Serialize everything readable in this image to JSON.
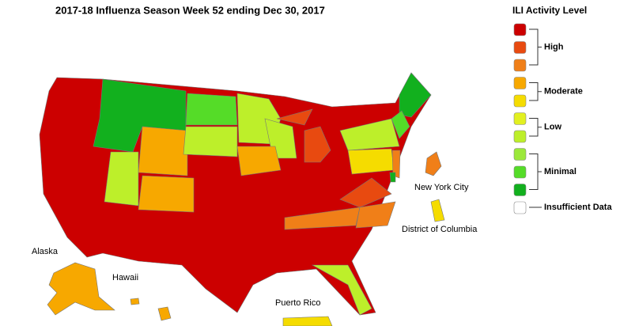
{
  "title": "2017-18 Influenza Season Week 52 ending Dec 30, 2017",
  "map_labels": {
    "alaska": "Alaska",
    "hawaii": "Hawaii",
    "puerto_rico": "Puerto Rico",
    "new_york_city": "New York City",
    "district_of_columbia": "District of Columbia"
  },
  "legend": {
    "title": "ILI Activity Level",
    "groups": [
      {
        "label": "High",
        "colors": [
          "#cc0000",
          "#e84a10",
          "#f07f18"
        ]
      },
      {
        "label": "Moderate",
        "colors": [
          "#f7a800",
          "#f5dc00"
        ]
      },
      {
        "label": "Low",
        "colors": [
          "#e2f020",
          "#bdef2a"
        ]
      },
      {
        "label": "Minimal",
        "colors": [
          "#9be83a",
          "#55dc28",
          "#12b01e"
        ]
      }
    ],
    "insufficient": {
      "label": "Insufficient Data",
      "color": "#ffffff"
    }
  }
}
